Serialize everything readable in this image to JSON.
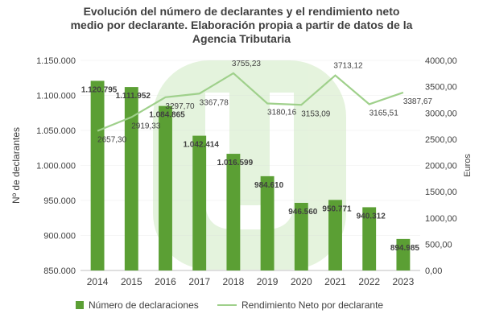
{
  "title_lines": [
    "Evolución del número de declarantes y el rendimiento neto",
    "medio por declarante. Elaboración propia a partir de datos de la",
    "Agencia Tributaria"
  ],
  "colors": {
    "bar": "#5b9f34",
    "bar_light": "#8cc06a",
    "line": "#9fd08b",
    "watermark": "#dcefd2",
    "text": "#404040",
    "grid": "#d9d9d9"
  },
  "chart_data": {
    "type": "bar+line",
    "title": "Evolución del número de declarantes y el rendimiento neto medio por declarante. Elaboración propia a partir de datos de la Agencia Tributaria",
    "categories": [
      "2014",
      "2015",
      "2016",
      "2017",
      "2018",
      "2019",
      "2020",
      "2021",
      "2022",
      "2023"
    ],
    "series": [
      {
        "name": "Número de declaraciones",
        "type": "bar",
        "axis": "left",
        "values": [
          1120795,
          1111952,
          1084865,
          1042414,
          1016599,
          984610,
          946560,
          950771,
          940312,
          894985
        ],
        "labels": [
          "1.120.795",
          "1.111.952",
          "1.084.865",
          "1.042.414",
          "1.016.599",
          "984.610",
          "946.560",
          "950.771",
          "940.312",
          "894.985"
        ]
      },
      {
        "name": "Rendimiento Neto por declarante",
        "type": "line",
        "axis": "right",
        "values": [
          2657.3,
          2919.33,
          3297.7,
          3367.78,
          3755.23,
          3180.16,
          3153.09,
          3713.12,
          3165.51,
          3387.67
        ],
        "labels": [
          "2657,30",
          "2919,33",
          "3297,70",
          "3367,78",
          "3755,23",
          "3180,16",
          "3153,09",
          "3713,12",
          "3165,51",
          "3387,67"
        ]
      }
    ],
    "ylabel_left": "Nº de declarantes",
    "ylabel_right": "Euros",
    "ylim_left": [
      850000,
      1150000
    ],
    "ylim_right": [
      0,
      4000
    ],
    "yticks_left": [
      "850.000",
      "900.000",
      "950.000",
      "1.000.000",
      "1.050.000",
      "1.100.000",
      "1.150.000"
    ],
    "yticks_right": [
      "0,00",
      "500,00",
      "1000,00",
      "1500,00",
      "2000,00",
      "2500,00",
      "3000,00",
      "3500,00",
      "4000,00"
    ],
    "legend_position": "bottom"
  }
}
